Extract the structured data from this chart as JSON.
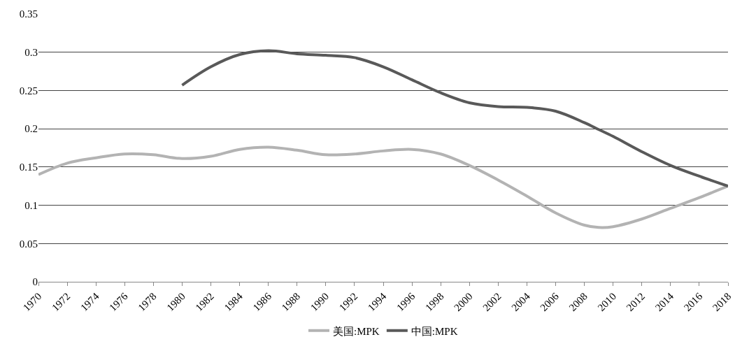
{
  "chart_data": {
    "type": "line",
    "x": [
      1970,
      1972,
      1974,
      1976,
      1978,
      1980,
      1982,
      1984,
      1986,
      1988,
      1990,
      1992,
      1994,
      1996,
      1998,
      2000,
      2002,
      2004,
      2006,
      2008,
      2009,
      2010,
      2012,
      2014,
      2016,
      2018
    ],
    "series": [
      {
        "name": "美国:MPK",
        "color": "#b3b3b3",
        "values": [
          0.14,
          0.155,
          0.162,
          0.167,
          0.166,
          0.161,
          0.164,
          0.173,
          0.176,
          0.172,
          0.166,
          0.167,
          0.171,
          0.173,
          0.167,
          0.152,
          0.133,
          0.112,
          0.09,
          0.074,
          0.071,
          0.072,
          0.082,
          0.096,
          0.11,
          0.125
        ]
      },
      {
        "name": "中国:MPK",
        "color": "#595959",
        "values": [
          null,
          null,
          null,
          null,
          null,
          0.257,
          0.281,
          0.297,
          0.302,
          0.298,
          0.296,
          0.293,
          0.281,
          0.264,
          0.247,
          0.234,
          0.229,
          0.228,
          0.223,
          0.208,
          0.199,
          0.19,
          0.17,
          0.152,
          0.138,
          0.125
        ]
      }
    ],
    "xlim": [
      1970,
      2018
    ],
    "xticks": [
      1970,
      1972,
      1974,
      1976,
      1978,
      1980,
      1982,
      1984,
      1986,
      1988,
      1990,
      1992,
      1994,
      1996,
      1998,
      2000,
      2002,
      2004,
      2006,
      2008,
      2010,
      2012,
      2014,
      2016,
      2018
    ],
    "ylim": [
      0,
      0.35
    ],
    "yticks": [
      0,
      0.05,
      0.1,
      0.15,
      0.2,
      0.25,
      0.3,
      0.35
    ],
    "grid": "y",
    "legend": "bottom",
    "marker": "none",
    "line_style": "solid"
  }
}
